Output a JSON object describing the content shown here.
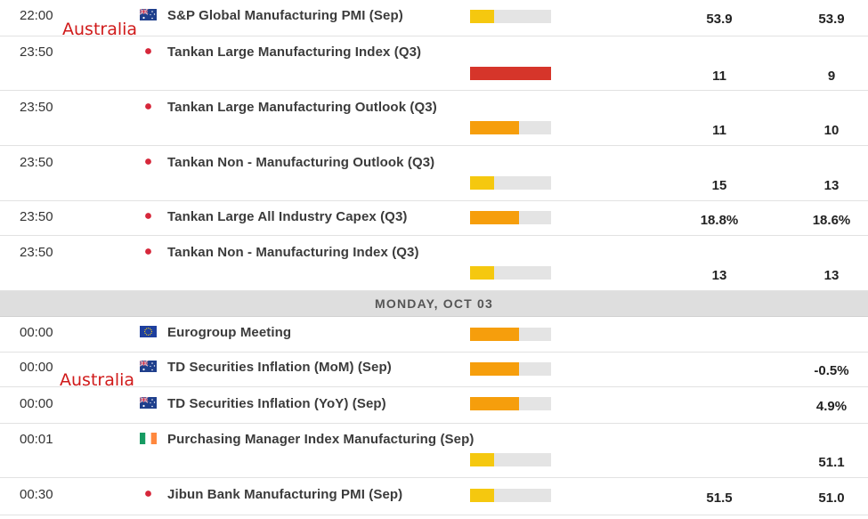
{
  "annotations": [
    "Australia",
    "Australia"
  ],
  "date_header": "MONDAY, OCT 03",
  "importance_colors": {
    "low": "#f5c80f",
    "medium": "#f69e0c",
    "high": "#d6352a",
    "track": "#e4e4e4"
  },
  "events": [
    {
      "time": "22:00",
      "country": "Australia",
      "flag_icon": "flag-australia-icon",
      "title": "S&P Global Manufacturing PMI (Sep)",
      "importance": "low",
      "importance_level": 1,
      "actual": "53.9",
      "forecast": "53.9"
    },
    {
      "time": "23:50",
      "country": "Japan",
      "flag_icon": "flag-japan-icon",
      "title": "Tankan Large Manufacturing Index (Q3)",
      "importance": "high",
      "importance_level": 3,
      "actual": "11",
      "forecast": "9"
    },
    {
      "time": "23:50",
      "country": "Japan",
      "flag_icon": "flag-japan-icon",
      "title": "Tankan Large Manufacturing Outlook (Q3)",
      "importance": "medium",
      "importance_level": 2,
      "actual": "11",
      "forecast": "10"
    },
    {
      "time": "23:50",
      "country": "Japan",
      "flag_icon": "flag-japan-icon",
      "title": "Tankan Non - Manufacturing Outlook (Q3)",
      "importance": "low",
      "importance_level": 1,
      "actual": "15",
      "forecast": "13"
    },
    {
      "time": "23:50",
      "country": "Japan",
      "flag_icon": "flag-japan-icon",
      "title": "Tankan Large All Industry Capex (Q3)",
      "importance": "medium",
      "importance_level": 2,
      "actual": "18.8%",
      "forecast": "18.6%"
    },
    {
      "time": "23:50",
      "country": "Japan",
      "flag_icon": "flag-japan-icon",
      "title": "Tankan Non - Manufacturing Index (Q3)",
      "importance": "low",
      "importance_level": 1,
      "actual": "13",
      "forecast": "13"
    },
    {
      "time": "00:00",
      "country": "European Union",
      "flag_icon": "flag-eu-icon",
      "title": "Eurogroup Meeting",
      "importance": "medium",
      "importance_level": 2,
      "actual": "",
      "forecast": ""
    },
    {
      "time": "00:00",
      "country": "Australia",
      "flag_icon": "flag-australia-icon",
      "title": "TD Securities Inflation (MoM) (Sep)",
      "importance": "medium",
      "importance_level": 2,
      "actual": "",
      "forecast": "-0.5%"
    },
    {
      "time": "00:00",
      "country": "Australia",
      "flag_icon": "flag-australia-icon",
      "title": "TD Securities Inflation (YoY) (Sep)",
      "importance": "medium",
      "importance_level": 2,
      "actual": "",
      "forecast": "4.9%"
    },
    {
      "time": "00:01",
      "country": "Ireland",
      "flag_icon": "flag-ireland-icon",
      "title": "Purchasing Manager Index Manufacturing (Sep)",
      "importance": "low",
      "importance_level": 1,
      "actual": "",
      "forecast": "51.1"
    },
    {
      "time": "00:30",
      "country": "Japan",
      "flag_icon": "flag-japan-icon",
      "title": "Jibun Bank Manufacturing PMI (Sep)",
      "importance": "low",
      "importance_level": 1,
      "actual": "51.5",
      "forecast": "51.0"
    }
  ]
}
